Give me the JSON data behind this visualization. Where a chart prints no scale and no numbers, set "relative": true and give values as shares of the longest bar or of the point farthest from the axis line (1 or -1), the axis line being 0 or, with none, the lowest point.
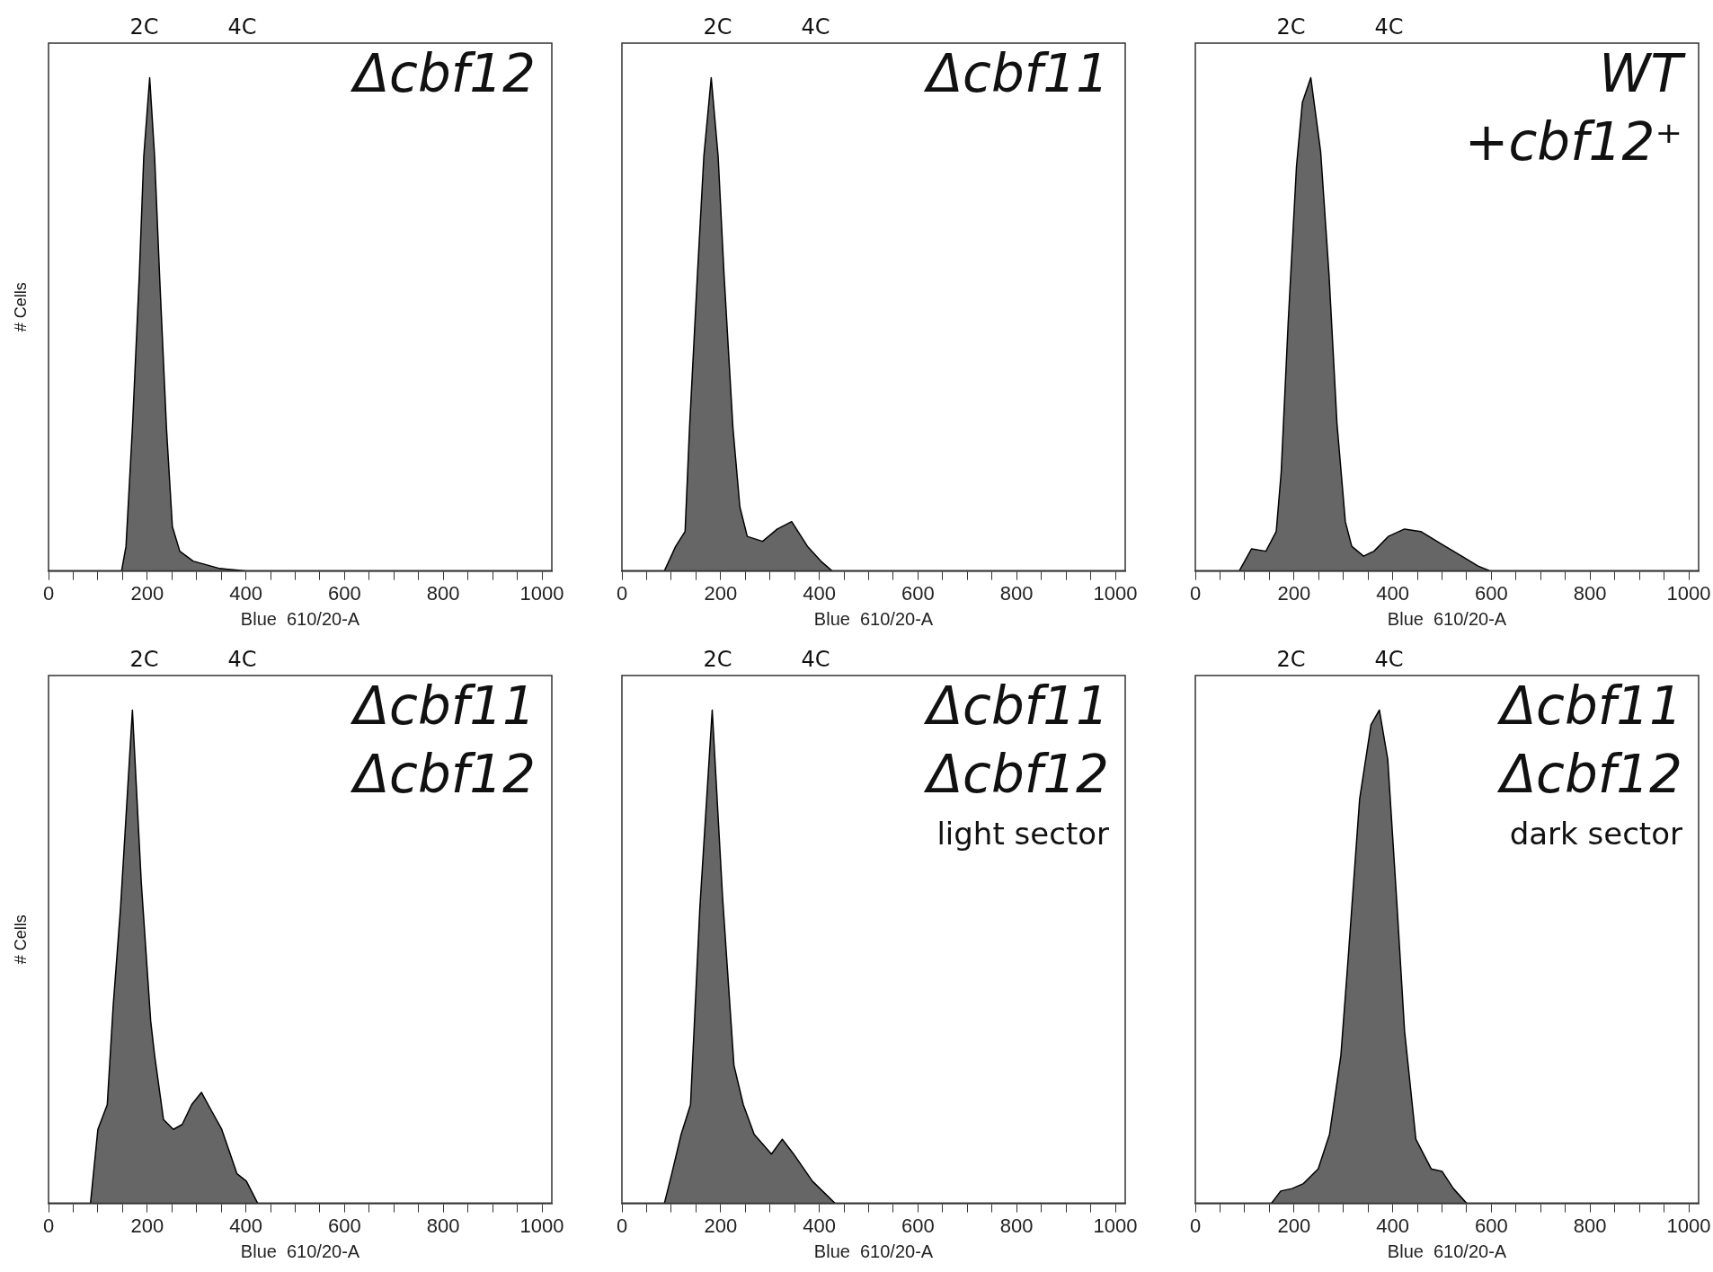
{
  "chart_data": [
    {
      "type": "area",
      "title": "Δcbf12",
      "xlabel": "Blue  610/20-A",
      "ylabel": "# Cells",
      "relative": true,
      "xlim": [
        0,
        1020
      ],
      "xticks": [
        0,
        {
          "value": 50,
          "label": null
        },
        {
          "value": 100,
          "label": null
        },
        {
          "value": 150,
          "label": null
        },
        200,
        {
          "value": 250,
          "label": null
        },
        {
          "value": 300,
          "label": null
        },
        {
          "value": 350,
          "label": null
        },
        400,
        {
          "value": 450,
          "label": null
        },
        {
          "value": 500,
          "label": null
        },
        {
          "value": 550,
          "label": null
        },
        600,
        {
          "value": 650,
          "label": null
        },
        {
          "value": 700,
          "label": null
        },
        {
          "value": 750,
          "label": null
        },
        800,
        {
          "value": 850,
          "label": null
        },
        {
          "value": 900,
          "label": null
        },
        {
          "value": 950,
          "label": null
        },
        1000
      ],
      "annotations": [
        "2C",
        "4C"
      ],
      "series": [
        {
          "color": "#666666",
          "x": [
            0,
            148,
            157,
            170,
            184,
            193,
            205,
            215,
            225,
            239,
            251,
            266,
            293,
            347,
            400,
            1020
          ],
          "values": [
            0,
            0,
            0.05,
            0.29,
            0.6,
            0.84,
            1,
            0.84,
            0.6,
            0.29,
            0.09,
            0.04,
            0.02,
            0.005,
            0,
            0
          ]
        }
      ]
    },
    {
      "type": "area",
      "title": "Δcbf11",
      "xlabel": "Blue  610/20-A",
      "relative": true,
      "xlim": [
        0,
        1020
      ],
      "xticks": [
        0,
        {
          "value": 50,
          "label": null
        },
        {
          "value": 100,
          "label": null
        },
        {
          "value": 150,
          "label": null
        },
        200,
        {
          "value": 250,
          "label": null
        },
        {
          "value": 300,
          "label": null
        },
        {
          "value": 350,
          "label": null
        },
        400,
        {
          "value": 450,
          "label": null
        },
        {
          "value": 500,
          "label": null
        },
        {
          "value": 550,
          "label": null
        },
        600,
        {
          "value": 650,
          "label": null
        },
        {
          "value": 700,
          "label": null
        },
        {
          "value": 750,
          "label": null
        },
        800,
        {
          "value": 850,
          "label": null
        },
        {
          "value": 900,
          "label": null
        },
        {
          "value": 950,
          "label": null
        },
        1000
      ],
      "annotations": [
        "2C",
        "4C"
      ],
      "series": [
        {
          "color": "#666666",
          "x": [
            0,
            86,
            109,
            128,
            137,
            153,
            166,
            181,
            195,
            207,
            225,
            239,
            254,
            285,
            315,
            344,
            376,
            403,
            426,
            1020
          ],
          "values": [
            0,
            0,
            0.05,
            0.08,
            0.29,
            0.6,
            0.84,
            1,
            0.84,
            0.6,
            0.29,
            0.13,
            0.07,
            0.06,
            0.085,
            0.1,
            0.05,
            0.02,
            0,
            0
          ]
        }
      ]
    },
    {
      "type": "area",
      "title": "WT\n+cbf12⁺",
      "xlabel": "Blue  610/20-A",
      "relative": true,
      "xlim": [
        0,
        1020
      ],
      "xticks": [
        0,
        {
          "value": 50,
          "label": null
        },
        {
          "value": 100,
          "label": null
        },
        {
          "value": 150,
          "label": null
        },
        200,
        {
          "value": 250,
          "label": null
        },
        {
          "value": 300,
          "label": null
        },
        {
          "value": 350,
          "label": null
        },
        400,
        {
          "value": 450,
          "label": null
        },
        {
          "value": 500,
          "label": null
        },
        {
          "value": 550,
          "label": null
        },
        600,
        {
          "value": 650,
          "label": null
        },
        {
          "value": 700,
          "label": null
        },
        {
          "value": 750,
          "label": null
        },
        800,
        {
          "value": 850,
          "label": null
        },
        {
          "value": 900,
          "label": null
        },
        {
          "value": 950,
          "label": null
        },
        1000
      ],
      "annotations": [
        "2C",
        "4C"
      ],
      "series": [
        {
          "color": "#666666",
          "x": [
            0,
            89,
            114,
            143,
            164,
            174,
            188,
            205,
            217,
            234,
            254,
            271,
            287,
            304,
            317,
            341,
            362,
            391,
            424,
            457,
            498,
            540,
            573,
            598,
            1020
          ],
          "values": [
            0,
            0,
            0.045,
            0.04,
            0.08,
            0.2,
            0.5,
            0.82,
            0.95,
            1,
            0.85,
            0.6,
            0.3,
            0.1,
            0.05,
            0.03,
            0.04,
            0.07,
            0.085,
            0.08,
            0.055,
            0.03,
            0.01,
            0,
            0
          ]
        }
      ]
    },
    {
      "type": "area",
      "title": "Δcbf11\nΔcbf12",
      "xlabel": "Blue  610/20-A",
      "ylabel": "# Cells",
      "relative": true,
      "xlim": [
        0,
        1020
      ],
      "xticks": [
        0,
        {
          "value": 50,
          "label": null
        },
        {
          "value": 100,
          "label": null
        },
        {
          "value": 150,
          "label": null
        },
        200,
        {
          "value": 250,
          "label": null
        },
        {
          "value": 300,
          "label": null
        },
        {
          "value": 350,
          "label": null
        },
        400,
        {
          "value": 450,
          "label": null
        },
        {
          "value": 500,
          "label": null
        },
        {
          "value": 550,
          "label": null
        },
        600,
        {
          "value": 650,
          "label": null
        },
        {
          "value": 700,
          "label": null
        },
        {
          "value": 750,
          "label": null
        },
        800,
        {
          "value": 850,
          "label": null
        },
        {
          "value": 900,
          "label": null
        },
        {
          "value": 950,
          "label": null
        },
        1000
      ],
      "annotations": [
        "2C",
        "4C"
      ],
      "series": [
        {
          "color": "#666666",
          "x": [
            0,
            85,
            100,
            119,
            131,
            146,
            170,
            188,
            207,
            215,
            233,
            253,
            271,
            290,
            310,
            329,
            351,
            382,
            401,
            424,
            1020
          ],
          "values": [
            0,
            0,
            0.15,
            0.2,
            0.4,
            0.6,
            1,
            0.65,
            0.37,
            0.3,
            0.17,
            0.15,
            0.16,
            0.2,
            0.225,
            0.19,
            0.15,
            0.06,
            0.045,
            0,
            0
          ]
        }
      ]
    },
    {
      "type": "area",
      "title": "Δcbf11\nΔcbf12\nlight sector",
      "xlabel": "Blue  610/20-A",
      "relative": true,
      "xlim": [
        0,
        1020
      ],
      "xticks": [
        0,
        {
          "value": 50,
          "label": null
        },
        {
          "value": 100,
          "label": null
        },
        {
          "value": 150,
          "label": null
        },
        200,
        {
          "value": 250,
          "label": null
        },
        {
          "value": 300,
          "label": null
        },
        {
          "value": 350,
          "label": null
        },
        400,
        {
          "value": 450,
          "label": null
        },
        {
          "value": 500,
          "label": null
        },
        {
          "value": 550,
          "label": null
        },
        600,
        {
          "value": 650,
          "label": null
        },
        {
          "value": 700,
          "label": null
        },
        {
          "value": 750,
          "label": null
        },
        800,
        {
          "value": 850,
          "label": null
        },
        {
          "value": 900,
          "label": null
        },
        {
          "value": 950,
          "label": null
        },
        1000
      ],
      "annotations": [
        "2C",
        "4C"
      ],
      "series": [
        {
          "color": "#666666",
          "x": [
            0,
            86,
            101,
            120,
            139,
            158,
            183,
            204,
            227,
            246,
            268,
            303,
            325,
            348,
            386,
            432,
            1020
          ],
          "values": [
            0,
            0,
            0.06,
            0.14,
            0.2,
            0.6,
            1,
            0.62,
            0.28,
            0.2,
            0.14,
            0.1,
            0.13,
            0.1,
            0.045,
            0,
            0
          ]
        }
      ]
    },
    {
      "type": "area",
      "title": "Δcbf11\nΔcbf12\ndark sector",
      "xlabel": "Blue  610/20-A",
      "relative": true,
      "xlim": [
        0,
        1020
      ],
      "xticks": [
        0,
        {
          "value": 50,
          "label": null
        },
        {
          "value": 100,
          "label": null
        },
        {
          "value": 150,
          "label": null
        },
        200,
        {
          "value": 250,
          "label": null
        },
        {
          "value": 300,
          "label": null
        },
        {
          "value": 350,
          "label": null
        },
        400,
        {
          "value": 450,
          "label": null
        },
        {
          "value": 500,
          "label": null
        },
        {
          "value": 550,
          "label": null
        },
        600,
        {
          "value": 650,
          "label": null
        },
        {
          "value": 700,
          "label": null
        },
        {
          "value": 750,
          "label": null
        },
        800,
        {
          "value": 850,
          "label": null
        },
        {
          "value": 900,
          "label": null
        },
        {
          "value": 950,
          "label": null
        },
        1000
      ],
      "annotations": [
        "2C",
        "4C"
      ],
      "series": [
        {
          "color": "#666666",
          "x": [
            0,
            154,
            173,
            196,
            219,
            249,
            272,
            295,
            310,
            333,
            356,
            373,
            390,
            409,
            424,
            447,
            478,
            500,
            523,
            550,
            1020
          ],
          "values": [
            0,
            0,
            0.025,
            0.03,
            0.04,
            0.07,
            0.14,
            0.3,
            0.5,
            0.82,
            0.97,
            1,
            0.9,
            0.6,
            0.35,
            0.13,
            0.07,
            0.065,
            0.03,
            0,
            0
          ]
        }
      ]
    }
  ]
}
